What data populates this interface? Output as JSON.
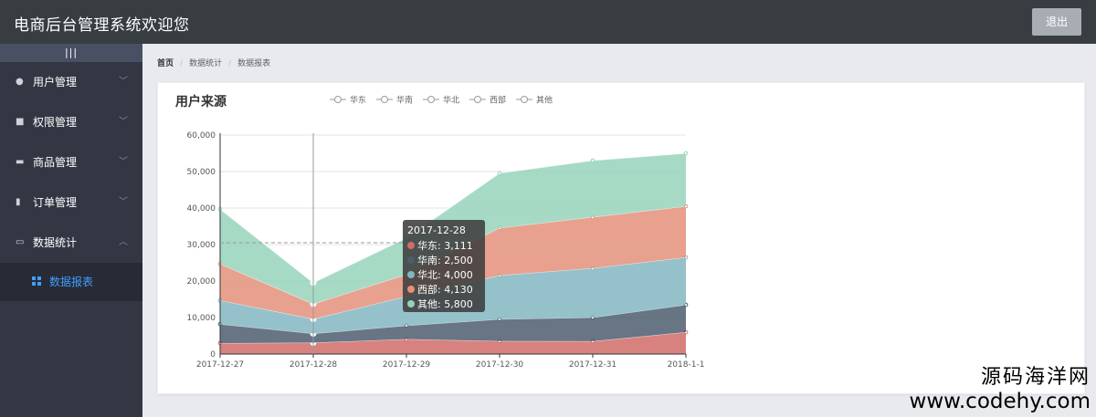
{
  "header": {
    "title": "电商后台管理系统欢迎您",
    "logout_label": "退出"
  },
  "sidebar": {
    "toggle_label": "|||",
    "items": [
      {
        "label": "用户管理",
        "icon": "user-icon"
      },
      {
        "label": "权限管理",
        "icon": "shield-icon"
      },
      {
        "label": "商品管理",
        "icon": "goods-icon"
      },
      {
        "label": "订单管理",
        "icon": "order-icon"
      },
      {
        "label": "数据统计",
        "icon": "chart-icon"
      }
    ],
    "active_sub": {
      "label": "数据报表",
      "icon": "grid-icon"
    }
  },
  "breadcrumb": [
    "首页",
    "数据统计",
    "数据报表"
  ],
  "chart_data": {
    "type": "area",
    "title": "用户来源",
    "categories": [
      "2017-12-27",
      "2017-12-28",
      "2017-12-29",
      "2017-12-30",
      "2017-12-31",
      "2018-1-1"
    ],
    "stacked": true,
    "series": [
      {
        "name": "华东",
        "color": "#d16c6a",
        "values": [
          2999,
          3111,
          4100,
          3565,
          3528,
          6000
        ]
      },
      {
        "name": "华南",
        "color": "#4c5d6e",
        "values": [
          5200,
          2500,
          3700,
          6000,
          6500,
          7500
        ]
      },
      {
        "name": "华北",
        "color": "#82b6c2",
        "values": [
          6500,
          4000,
          8000,
          12000,
          13500,
          13000
        ]
      },
      {
        "name": "西部",
        "color": "#e4917b",
        "values": [
          10000,
          4130,
          6000,
          13000,
          14000,
          14000
        ]
      },
      {
        "name": "其他",
        "color": "#97d3bb",
        "values": [
          15000,
          5800,
          10000,
          15000,
          15500,
          14500
        ]
      }
    ],
    "yticks": [
      "0",
      "10,000",
      "20,000",
      "30,000",
      "40,000",
      "50,000",
      "60,000"
    ],
    "ylim": [
      0,
      60000
    ],
    "legend_position": "top",
    "grid": true,
    "tooltip": {
      "title": "2017-12-28",
      "rows": [
        "华东: 3,111",
        "华南: 2,500",
        "华北: 4,000",
        "西部: 4,130",
        "其他: 5,800"
      ]
    }
  },
  "watermark": {
    "line1": "源码海洋网",
    "line2": "www.codehy.com"
  }
}
